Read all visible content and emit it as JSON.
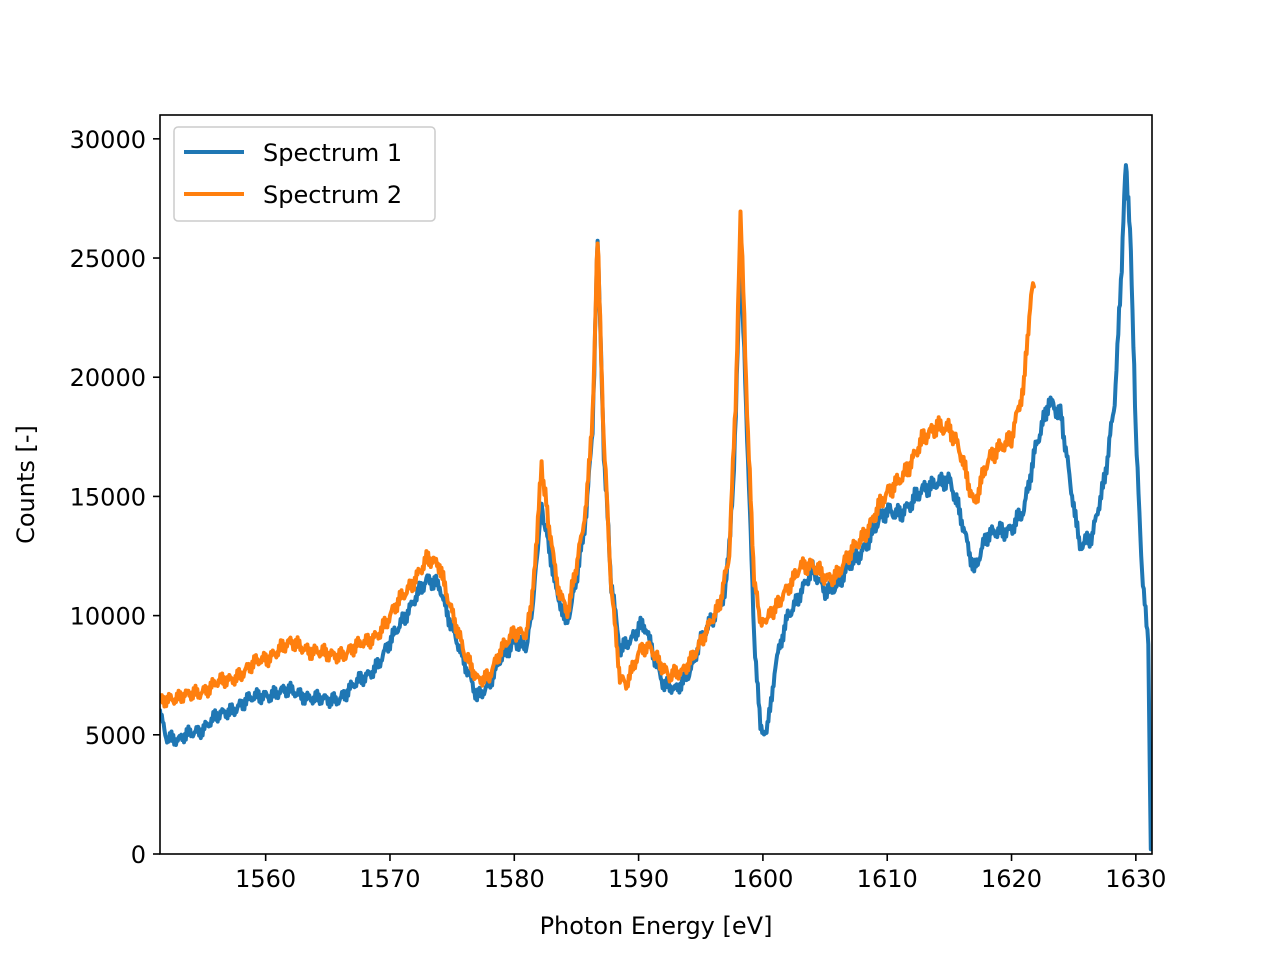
{
  "chart_data": {
    "type": "line",
    "title": "",
    "xlabel": "Photon Energy [eV]",
    "ylabel": "Counts [-]",
    "xlim": [
      1551.5,
      1631.3
    ],
    "ylim": [
      0,
      31000
    ],
    "xticks": [
      1560,
      1570,
      1580,
      1590,
      1600,
      1610,
      1620,
      1630
    ],
    "yticks": [
      0,
      5000,
      10000,
      15000,
      20000,
      25000,
      30000
    ],
    "grid": false,
    "legend_position": "upper-left",
    "series": [
      {
        "name": "Spectrum 1",
        "color": "#1f77b4",
        "points": [
          [
            1551.5,
            6000
          ],
          [
            1552.0,
            5000
          ],
          [
            1553.0,
            4700
          ],
          [
            1554.0,
            5100
          ],
          [
            1555.0,
            5300
          ],
          [
            1556.0,
            5700
          ],
          [
            1557.0,
            6000
          ],
          [
            1558.0,
            6300
          ],
          [
            1559.0,
            6500
          ],
          [
            1560.0,
            6700
          ],
          [
            1561.0,
            6800
          ],
          [
            1562.0,
            6800
          ],
          [
            1563.0,
            6700
          ],
          [
            1564.0,
            6500
          ],
          [
            1565.0,
            6400
          ],
          [
            1566.0,
            6600
          ],
          [
            1567.0,
            7000
          ],
          [
            1568.0,
            7400
          ],
          [
            1569.0,
            8000
          ],
          [
            1570.0,
            8800
          ],
          [
            1571.0,
            9800
          ],
          [
            1572.0,
            10800
          ],
          [
            1573.0,
            11400
          ],
          [
            1574.0,
            11300
          ],
          [
            1575.0,
            9500
          ],
          [
            1576.0,
            7900
          ],
          [
            1577.0,
            6700
          ],
          [
            1578.0,
            7100
          ],
          [
            1579.0,
            8200
          ],
          [
            1580.0,
            9000
          ],
          [
            1581.0,
            8700
          ],
          [
            1581.6,
            11000
          ],
          [
            1582.2,
            14700
          ],
          [
            1582.8,
            12800
          ],
          [
            1583.5,
            10800
          ],
          [
            1584.2,
            9600
          ],
          [
            1585.0,
            11500
          ],
          [
            1585.8,
            14200
          ],
          [
            1586.3,
            18000
          ],
          [
            1586.7,
            25900
          ],
          [
            1587.2,
            17000
          ],
          [
            1587.8,
            11200
          ],
          [
            1588.5,
            8700
          ],
          [
            1589.5,
            9000
          ],
          [
            1590.3,
            9700
          ],
          [
            1591.0,
            8800
          ],
          [
            1592.0,
            7100
          ],
          [
            1593.0,
            6800
          ],
          [
            1594.0,
            7600
          ],
          [
            1595.0,
            9000
          ],
          [
            1596.0,
            9800
          ],
          [
            1597.0,
            11200
          ],
          [
            1597.6,
            15000
          ],
          [
            1598.2,
            25000
          ],
          [
            1598.8,
            16500
          ],
          [
            1599.3,
            9000
          ],
          [
            1599.8,
            5200
          ],
          [
            1600.3,
            5100
          ],
          [
            1601.0,
            7800
          ],
          [
            1602.0,
            10000
          ],
          [
            1603.0,
            11000
          ],
          [
            1604.0,
            11800
          ],
          [
            1605.0,
            11100
          ],
          [
            1606.0,
            11300
          ],
          [
            1607.0,
            12000
          ],
          [
            1608.0,
            12800
          ],
          [
            1609.0,
            13700
          ],
          [
            1610.0,
            14300
          ],
          [
            1611.0,
            14400
          ],
          [
            1612.0,
            14700
          ],
          [
            1613.0,
            15300
          ],
          [
            1614.0,
            15700
          ],
          [
            1615.0,
            15600
          ],
          [
            1616.0,
            14000
          ],
          [
            1617.0,
            12000
          ],
          [
            1618.0,
            13200
          ],
          [
            1619.0,
            13600
          ],
          [
            1620.0,
            13700
          ],
          [
            1621.0,
            14300
          ],
          [
            1622.0,
            17300
          ],
          [
            1623.0,
            19000
          ],
          [
            1624.0,
            18200
          ],
          [
            1624.8,
            15200
          ],
          [
            1625.5,
            13000
          ],
          [
            1626.5,
            13200
          ],
          [
            1627.5,
            15800
          ],
          [
            1628.3,
            19000
          ],
          [
            1628.8,
            24000
          ],
          [
            1629.2,
            29400
          ],
          [
            1629.6,
            25500
          ],
          [
            1630.0,
            17500
          ],
          [
            1630.5,
            12000
          ],
          [
            1631.0,
            8800
          ],
          [
            1631.2,
            200
          ]
        ]
      },
      {
        "name": "Spectrum 2",
        "color": "#ff7f0e",
        "points": [
          [
            1551.5,
            6400
          ],
          [
            1552.0,
            6600
          ],
          [
            1553.0,
            6500
          ],
          [
            1554.0,
            6700
          ],
          [
            1555.0,
            6900
          ],
          [
            1556.0,
            7100
          ],
          [
            1557.0,
            7300
          ],
          [
            1558.0,
            7600
          ],
          [
            1559.0,
            7900
          ],
          [
            1560.0,
            8200
          ],
          [
            1561.0,
            8600
          ],
          [
            1562.0,
            8800
          ],
          [
            1563.0,
            8700
          ],
          [
            1564.0,
            8500
          ],
          [
            1565.0,
            8300
          ],
          [
            1566.0,
            8400
          ],
          [
            1567.0,
            8600
          ],
          [
            1568.0,
            8800
          ],
          [
            1569.0,
            9300
          ],
          [
            1570.0,
            9900
          ],
          [
            1571.0,
            10800
          ],
          [
            1572.0,
            11600
          ],
          [
            1573.0,
            12300
          ],
          [
            1574.0,
            12100
          ],
          [
            1575.0,
            10200
          ],
          [
            1576.0,
            8300
          ],
          [
            1577.0,
            7400
          ],
          [
            1578.0,
            7500
          ],
          [
            1579.0,
            8500
          ],
          [
            1580.0,
            9400
          ],
          [
            1581.0,
            9300
          ],
          [
            1581.6,
            11500
          ],
          [
            1582.2,
            16400
          ],
          [
            1582.8,
            13600
          ],
          [
            1583.5,
            11300
          ],
          [
            1584.2,
            10000
          ],
          [
            1585.0,
            12000
          ],
          [
            1585.8,
            14500
          ],
          [
            1586.3,
            18500
          ],
          [
            1586.7,
            25700
          ],
          [
            1587.2,
            17500
          ],
          [
            1587.8,
            11000
          ],
          [
            1588.5,
            7500
          ],
          [
            1589.0,
            7200
          ],
          [
            1590.0,
            8300
          ],
          [
            1590.7,
            8900
          ],
          [
            1591.5,
            8300
          ],
          [
            1592.5,
            7400
          ],
          [
            1593.5,
            7600
          ],
          [
            1594.5,
            8500
          ],
          [
            1595.5,
            9300
          ],
          [
            1596.5,
            10400
          ],
          [
            1597.3,
            12500
          ],
          [
            1597.8,
            19000
          ],
          [
            1598.2,
            27000
          ],
          [
            1598.8,
            17500
          ],
          [
            1599.3,
            11500
          ],
          [
            1599.9,
            9600
          ],
          [
            1601.0,
            10200
          ],
          [
            1602.0,
            11100
          ],
          [
            1603.0,
            12200
          ],
          [
            1604.0,
            12000
          ],
          [
            1605.0,
            11600
          ],
          [
            1606.0,
            11800
          ],
          [
            1607.0,
            12500
          ],
          [
            1608.0,
            13300
          ],
          [
            1609.0,
            14300
          ],
          [
            1610.0,
            15000
          ],
          [
            1611.0,
            15800
          ],
          [
            1612.0,
            16500
          ],
          [
            1613.0,
            17400
          ],
          [
            1614.0,
            18100
          ],
          [
            1615.0,
            17800
          ],
          [
            1616.0,
            16600
          ],
          [
            1617.0,
            14800
          ],
          [
            1618.0,
            16300
          ],
          [
            1619.0,
            17000
          ],
          [
            1620.0,
            17600
          ],
          [
            1621.0,
            19500
          ],
          [
            1621.5,
            23000
          ],
          [
            1621.8,
            23800
          ]
        ]
      }
    ]
  }
}
